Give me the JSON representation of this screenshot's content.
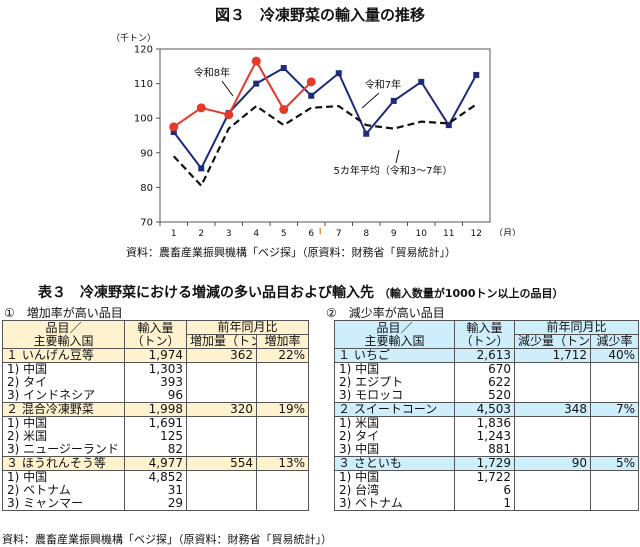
{
  "figure": {
    "title": "図３　冷凍野菜の輸入量の推移",
    "source": "資料：農畜産業振興機構「ベジ探」（原資料：財務省「貿易統計」）"
  },
  "chart_data": {
    "type": "line",
    "unit_label": "（千トン）",
    "x_unit_label": "（月）",
    "categories": [
      "1",
      "2",
      "3",
      "4",
      "5",
      "6",
      "7",
      "8",
      "9",
      "10",
      "11",
      "12"
    ],
    "ylim": [
      70,
      120
    ],
    "yticks": [
      70,
      80,
      90,
      100,
      110,
      120
    ],
    "grid": false,
    "series": [
      {
        "name": "令和7年",
        "color": "#1f2a7a",
        "style": "solid",
        "marker": "square",
        "values": [
          96,
          85.5,
          101.5,
          110,
          114.5,
          106.5,
          113,
          95.5,
          105,
          110.5,
          98,
          112.5
        ]
      },
      {
        "name": "令和8年",
        "color": "#e53a2a",
        "style": "solid",
        "marker": "circle",
        "values": [
          97.5,
          103,
          101,
          116.5,
          102.5,
          110.5,
          null,
          null,
          null,
          null,
          null,
          null
        ]
      },
      {
        "name": "5カ年平均（令和3～7年）",
        "color": "#111111",
        "style": "dashed",
        "marker": "none",
        "values": [
          89,
          80.5,
          97,
          103.5,
          98,
          103,
          103.5,
          98,
          97,
          99,
          98.5,
          104
        ]
      }
    ],
    "labels": {
      "r8": "令和8年",
      "r7": "令和7年",
      "avg": "5カ年平均（令和3～7年）"
    }
  },
  "table": {
    "title": "表３　冷凍野菜における増減の多い品目および輸入先",
    "note": "（輸入数量が1000トン以上の品目）",
    "source": "資料：農畜産業振興機構「ベジ探」（原資料：財務省「貿易統計」）",
    "left": {
      "subtitle": "①　増加率が高い品目",
      "headers": {
        "item_line1": "品目／",
        "item_line2": "主要輸入国",
        "vol_line1": "輸入量",
        "vol_line2": "（トン）",
        "yoy": "前年同月比",
        "change": "増加量（トン）",
        "rate": "増加率"
      },
      "groups": [
        {
          "item": "１ いんげん豆等",
          "volume": "1,974",
          "change": "362",
          "rate": "22%",
          "rows": [
            {
              "name": "1) 中国",
              "volume": "1,303"
            },
            {
              "name": "2) タイ",
              "volume": "393"
            },
            {
              "name": "3) インドネシア",
              "volume": "96"
            }
          ]
        },
        {
          "item": "２ 混合冷凍野菜",
          "volume": "1,998",
          "change": "320",
          "rate": "19%",
          "rows": [
            {
              "name": "1) 中国",
              "volume": "1,691"
            },
            {
              "name": "2) 米国",
              "volume": "125"
            },
            {
              "name": "3) ニュージーランド",
              "volume": "82"
            }
          ]
        },
        {
          "item": "３ ほうれんそう等",
          "volume": "4,977",
          "change": "554",
          "rate": "13%",
          "rows": [
            {
              "name": "1) 中国",
              "volume": "4,852"
            },
            {
              "name": "2) ベトナム",
              "volume": "31"
            },
            {
              "name": "3) ミャンマー",
              "volume": "29"
            }
          ]
        }
      ]
    },
    "right": {
      "subtitle": "②　減少率が高い品目",
      "headers": {
        "item_line1": "品目／",
        "item_line2": "主要輸入国",
        "vol_line1": "輸入量",
        "vol_line2": "（トン）",
        "yoy": "前年同月比",
        "change": "減少量（トン）",
        "rate": "減少率"
      },
      "groups": [
        {
          "item": "１ いちご",
          "volume": "2,613",
          "change": "1,712",
          "rate": "40%",
          "rows": [
            {
              "name": "1) 中国",
              "volume": "670"
            },
            {
              "name": "2) エジプト",
              "volume": "622"
            },
            {
              "name": "3) モロッコ",
              "volume": "520"
            }
          ]
        },
        {
          "item": "２ スイートコーン",
          "volume": "4,503",
          "change": "348",
          "rate": "7%",
          "rows": [
            {
              "name": "1) 米国",
              "volume": "1,836"
            },
            {
              "name": "2) タイ",
              "volume": "1,243"
            },
            {
              "name": "3) 中国",
              "volume": "881"
            }
          ]
        },
        {
          "item": "３ さといも",
          "volume": "1,729",
          "change": "90",
          "rate": "5%",
          "rows": [
            {
              "name": "1) 中国",
              "volume": "1,722"
            },
            {
              "name": "2) 台湾",
              "volume": "6"
            },
            {
              "name": "3) ベトナム",
              "volume": "1"
            }
          ]
        }
      ]
    }
  }
}
